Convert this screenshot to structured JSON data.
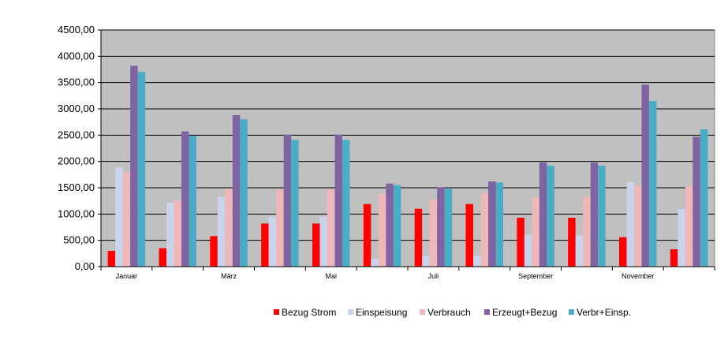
{
  "chart_data": {
    "type": "bar",
    "categories": [
      "Januar",
      "",
      "März",
      "",
      "Mai",
      "",
      "Juli",
      "",
      "September",
      "",
      "November",
      ""
    ],
    "yticks": [
      "0,00",
      "500,00",
      "1000,00",
      "1500,00",
      "2000,00",
      "2500,00",
      "3000,00",
      "3500,00",
      "4000,00",
      "4500,00"
    ],
    "ylim": [
      0,
      4500
    ],
    "grid": true,
    "legend_position": "bottom",
    "plot_background": "#C0C0C0",
    "series": [
      {
        "name": "Bezug Strom",
        "color": "#FF0000",
        "values": [
          300,
          350,
          580,
          820,
          820,
          1190,
          1100,
          1190,
          930,
          930,
          560,
          330
        ]
      },
      {
        "name": "Einspeisung",
        "color": "#C9D4EC",
        "values": [
          1890,
          1220,
          1330,
          950,
          950,
          150,
          200,
          210,
          600,
          600,
          1610,
          1090
        ]
      },
      {
        "name": "Verbrauch",
        "color": "#EFB8B8",
        "values": [
          1790,
          1260,
          1480,
          1460,
          1470,
          1390,
          1280,
          1400,
          1320,
          1330,
          1540,
          1530
        ]
      },
      {
        "name": "Erzeugt+Bezug",
        "color": "#8064A2",
        "values": [
          3820,
          2570,
          2880,
          2510,
          2510,
          1580,
          1510,
          1620,
          1980,
          1980,
          3460,
          2470
        ]
      },
      {
        "name": "Verbr+Einsp.",
        "color": "#4BACC6",
        "values": [
          3700,
          2490,
          2800,
          2410,
          2410,
          1550,
          1480,
          1600,
          1920,
          1920,
          3150,
          2610
        ]
      }
    ]
  }
}
